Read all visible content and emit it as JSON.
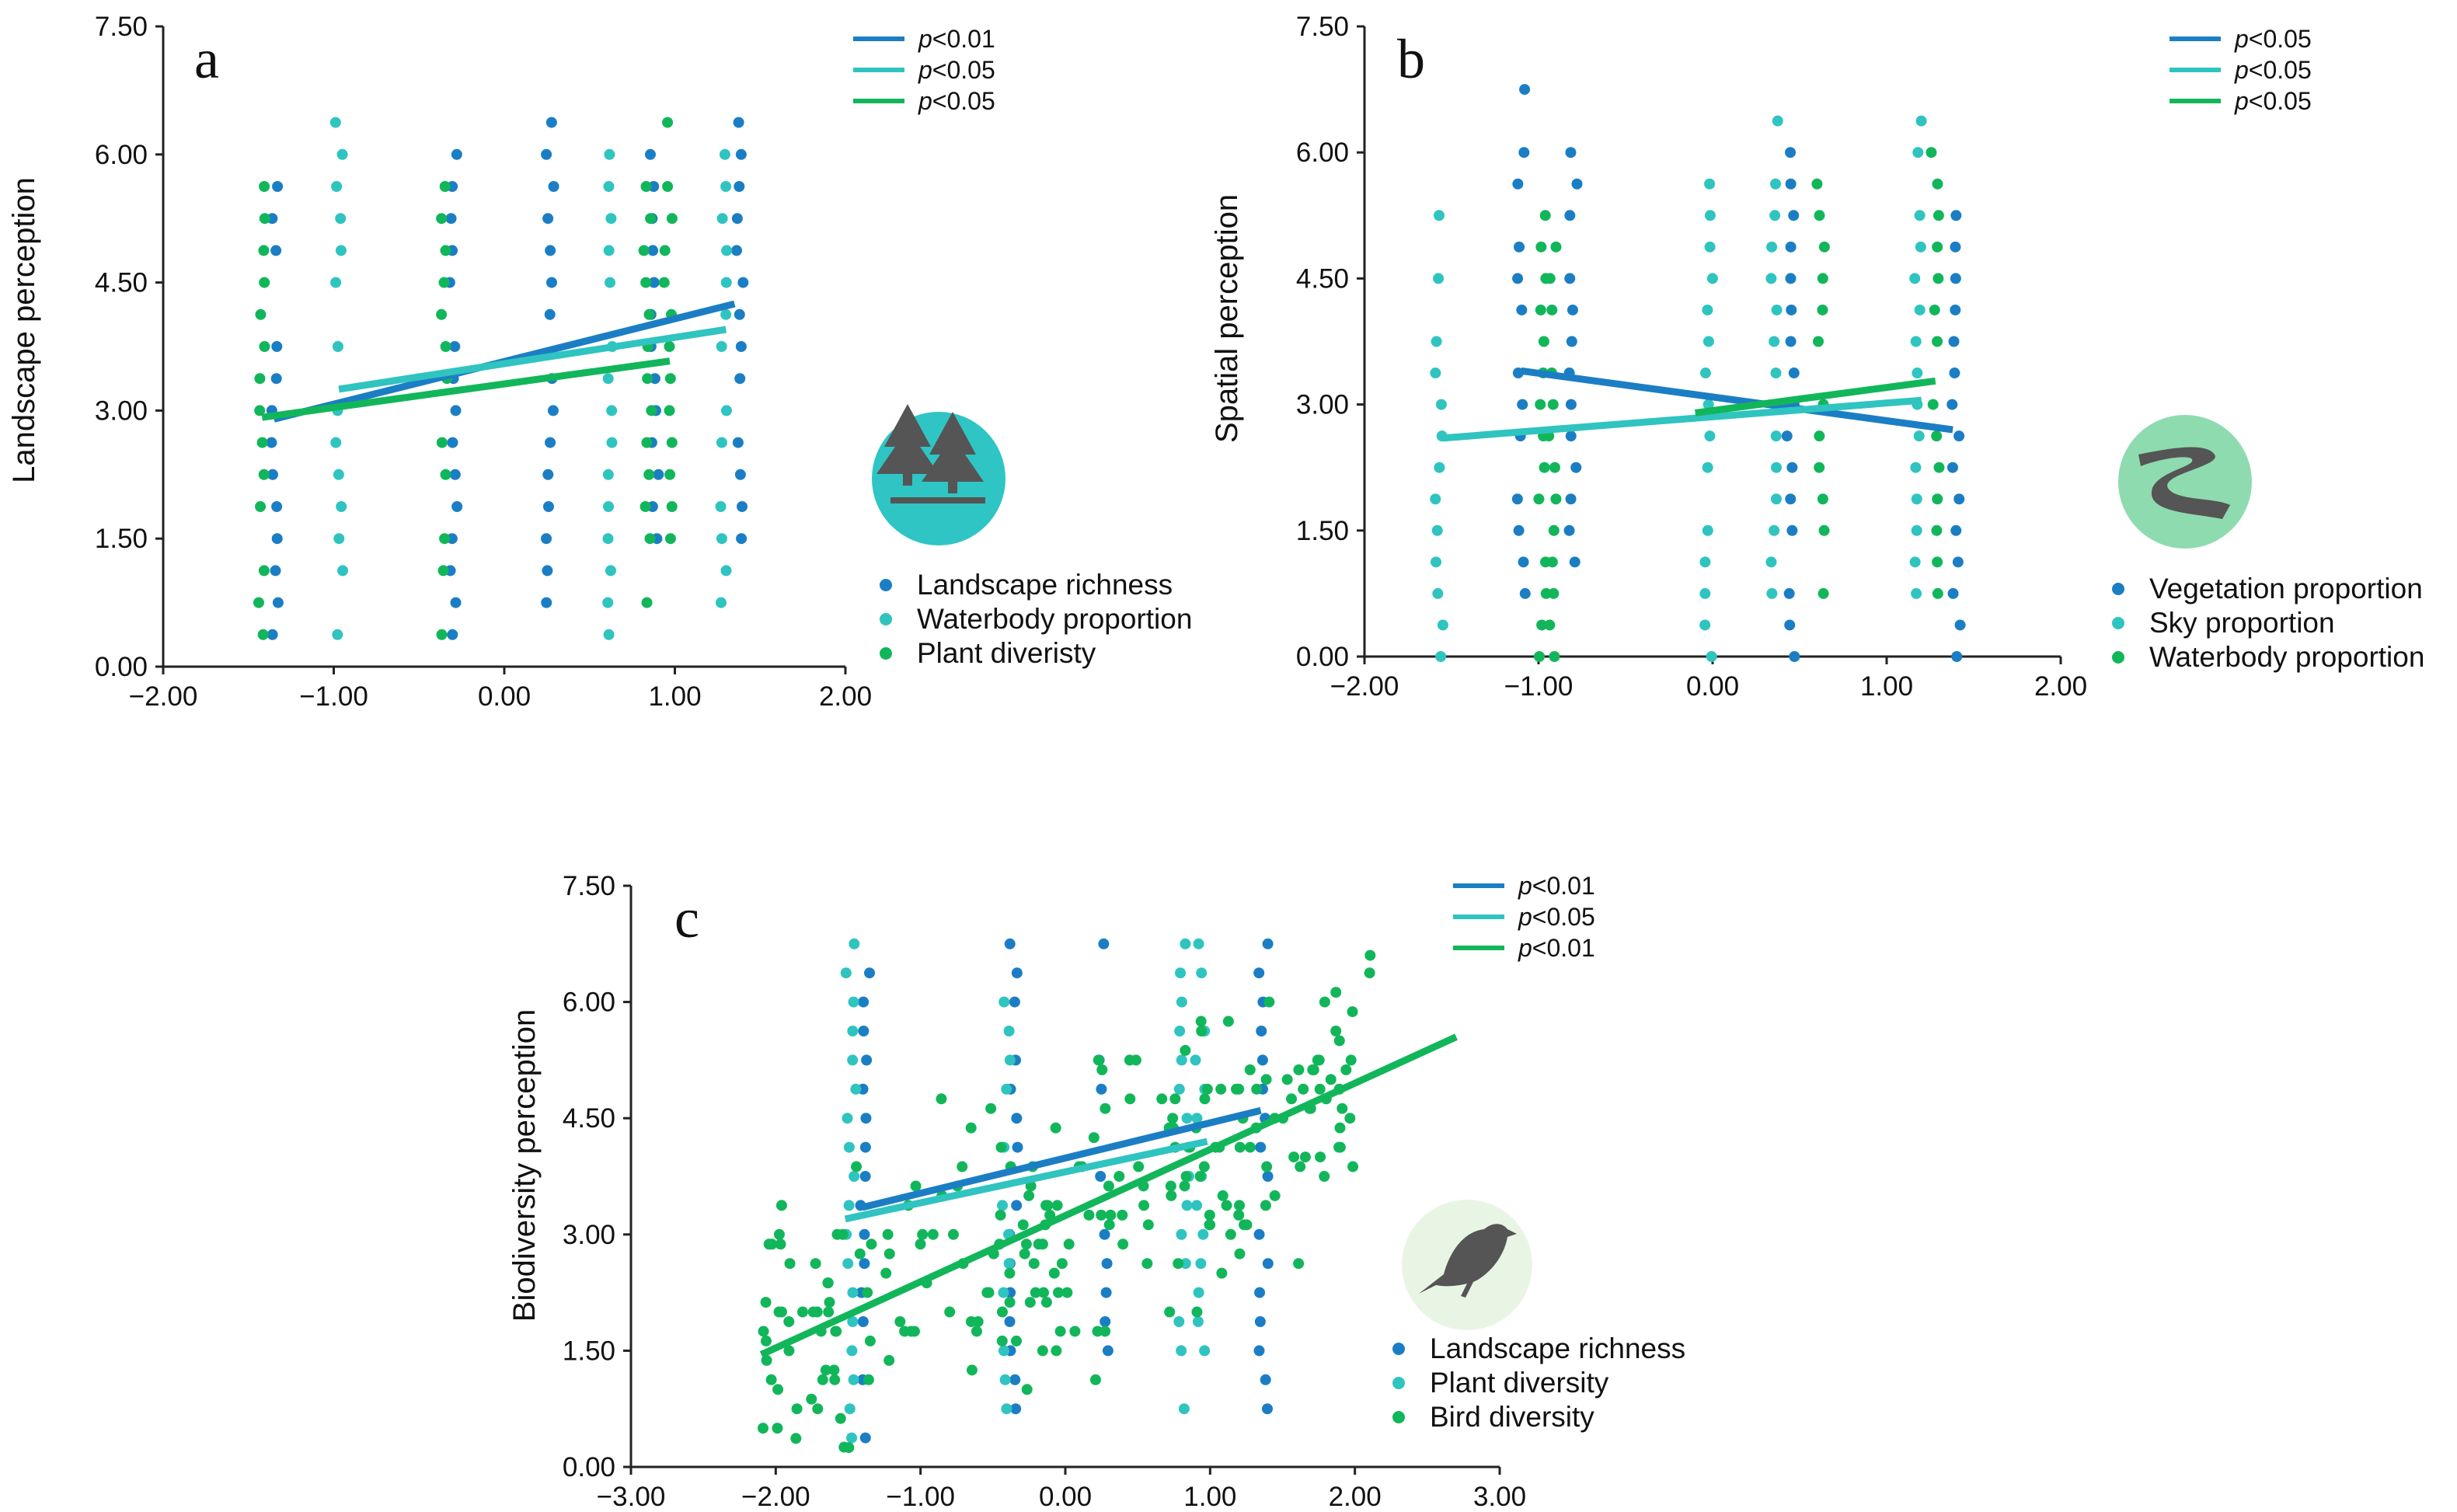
{
  "colors": {
    "blue": "#1b7ec4",
    "teal": "#2fc4c0",
    "green": "#12b65a",
    "axis": "#222222"
  },
  "chart_data": [
    {
      "type": "scatter",
      "panel_label": "a",
      "ylabel": "Landscape perception",
      "xlabel": "",
      "xlim": [
        -2,
        2
      ],
      "ylim": [
        0,
        7.5
      ],
      "xticks": [
        "−2.00",
        "−1.00",
        "0.00",
        "1.00",
        "2.00"
      ],
      "yticks": [
        "0.00",
        "1.50",
        "3.00",
        "4.50",
        "6.00",
        "7.50"
      ],
      "icon": "forest-icon",
      "icon_color": "#2ec5c4",
      "series": [
        {
          "name": "Landscape richness",
          "color": "#1b7ec4",
          "p_prefix": "p",
          "p_value": "<0.01",
          "trend": [
            [
              -1.35,
              2.9
            ],
            [
              1.35,
              4.25
            ]
          ],
          "columns": [
            [
              -1.35,
              [
                0.25,
                3.8
              ]
            ],
            [
              -1.35,
              [
                4.25,
                5.8
              ]
            ],
            [
              -0.3,
              [
                0.25,
                6.0
              ]
            ],
            [
              0.27,
              [
                0.6,
                6.6
              ]
            ],
            [
              0.88,
              [
                1.5,
                6.0
              ]
            ],
            [
              1.38,
              [
                1.5,
                6.5
              ]
            ]
          ]
        },
        {
          "name": "Waterbody proportion",
          "color": "#2fc4c0",
          "p_prefix": "p",
          "p_value": "<0.05",
          "trend": [
            [
              -0.97,
              3.25
            ],
            [
              1.3,
              3.95
            ]
          ],
          "columns": [
            [
              -0.97,
              [
                0.25,
                6.6
              ]
            ],
            [
              0.62,
              [
                0.25,
                6.0
              ]
            ],
            [
              1.28,
              [
                0.5,
                6.0
              ]
            ]
          ]
        },
        {
          "name": "Plant diveristy",
          "color": "#12b65a",
          "p_prefix": "p",
          "p_value": "<0.05",
          "trend": [
            [
              -1.42,
              2.92
            ],
            [
              0.97,
              3.58
            ]
          ],
          "columns": [
            [
              -1.42,
              [
                0.25,
                5.8
              ]
            ],
            [
              -0.35,
              [
                0.25,
                5.8
              ]
            ],
            [
              0.84,
              [
                0.75,
                6.0
              ]
            ],
            [
              0.96,
              [
                0.8,
                6.6
              ]
            ]
          ]
        }
      ]
    },
    {
      "type": "scatter",
      "panel_label": "b",
      "ylabel": "Spatial perception",
      "xlabel": "",
      "xlim": [
        -2,
        2
      ],
      "ylim": [
        0,
        7.5
      ],
      "xticks": [
        "−2.00",
        "−1.00",
        "0.00",
        "1.00",
        "2.00"
      ],
      "yticks": [
        "0.00",
        "1.50",
        "3.00",
        "4.50",
        "6.00",
        "7.50"
      ],
      "icon": "river-icon",
      "icon_color": "#8fdbb0",
      "series": [
        {
          "name": "Vegetation proportion",
          "color": "#1b7ec4",
          "p_prefix": "p",
          "p_value": "<0.05",
          "trend": [
            [
              -1.1,
              3.4
            ],
            [
              1.38,
              2.7
            ]
          ],
          "columns": [
            [
              -1.1,
              [
                0.4,
                6.8
              ]
            ],
            [
              -0.8,
              [
                0.4,
                6.4
              ]
            ],
            [
              0.45,
              [
                0.0,
                6.0
              ]
            ],
            [
              1.4,
              [
                0.0,
                5.6
              ]
            ]
          ]
        },
        {
          "name": "Sky proportion",
          "color": "#2fc4c0",
          "p_prefix": "p",
          "p_value": "<0.05",
          "trend": [
            [
              -1.55,
              2.6
            ],
            [
              1.2,
              3.05
            ]
          ],
          "columns": [
            [
              -1.57,
              [
                0.0,
                5.3
              ]
            ],
            [
              -0.02,
              [
                0.0,
                6.0
              ]
            ],
            [
              0.35,
              [
                0.4,
                6.4
              ]
            ],
            [
              1.18,
              [
                0.75,
                6.4
              ]
            ]
          ]
        },
        {
          "name": "Waterbody proportion",
          "color": "#12b65a",
          "p_prefix": "p",
          "p_value": "<0.05",
          "trend": [
            [
              -0.1,
              2.9
            ],
            [
              1.28,
              3.28
            ]
          ],
          "columns": [
            [
              -0.98,
              [
                0.0,
                5.3
              ]
            ],
            [
              -0.92,
              [
                0.0,
                5.3
              ]
            ],
            [
              0.62,
              [
                0.4,
                6.0
              ]
            ],
            [
              1.28,
              [
                0.75,
                6.4
              ]
            ]
          ]
        }
      ]
    },
    {
      "type": "scatter",
      "panel_label": "c",
      "ylabel": "Biodiversity perception",
      "xlabel": "",
      "xlim": [
        -3,
        3
      ],
      "ylim": [
        0,
        7.5
      ],
      "xticks": [
        "−3.00",
        "−2.00",
        "−1.00",
        "0.00",
        "1.00",
        "2.00",
        "3.00"
      ],
      "yticks": [
        "0.00",
        "1.50",
        "3.00",
        "4.50",
        "6.00",
        "7.50"
      ],
      "icon": "bird-icon",
      "icon_color": "#e8f5e4",
      "series": [
        {
          "name": "Landscape richness",
          "color": "#1b7ec4",
          "p_prefix": "p",
          "p_value": "<0.01",
          "trend": [
            [
              -1.4,
              3.35
            ],
            [
              1.35,
              4.6
            ]
          ],
          "columns": [
            [
              -1.38,
              [
                0.2,
                6.4
              ]
            ],
            [
              -0.35,
              [
                0.5,
                7.0
              ]
            ],
            [
              0.27,
              [
                1.5,
                7.0
              ]
            ],
            [
              1.37,
              [
                0.4,
                7.0
              ]
            ]
          ]
        },
        {
          "name": "Plant diversity",
          "color": "#2fc4c0",
          "p_prefix": "p",
          "p_value": "<0.05",
          "trend": [
            [
              -1.52,
              3.2
            ],
            [
              0.98,
              4.2
            ]
          ],
          "columns": [
            [
              -1.48,
              [
                0.2,
                7.0
              ]
            ],
            [
              -0.4,
              [
                0.4,
                6.4
              ]
            ],
            [
              0.82,
              [
                0.4,
                7.0
              ]
            ],
            [
              0.93,
              [
                1.2,
                7.0
              ]
            ]
          ]
        },
        {
          "name": "Bird diversity",
          "color": "#12b65a",
          "p_prefix": "p",
          "p_value": "<0.01",
          "trend": [
            [
              -2.1,
              1.45
            ],
            [
              2.7,
              5.55
            ]
          ],
          "cloud": {
            "x_range": [
              -2.1,
              2.7
            ],
            "y_spread": 1.4,
            "count": 230
          }
        }
      ]
    }
  ]
}
